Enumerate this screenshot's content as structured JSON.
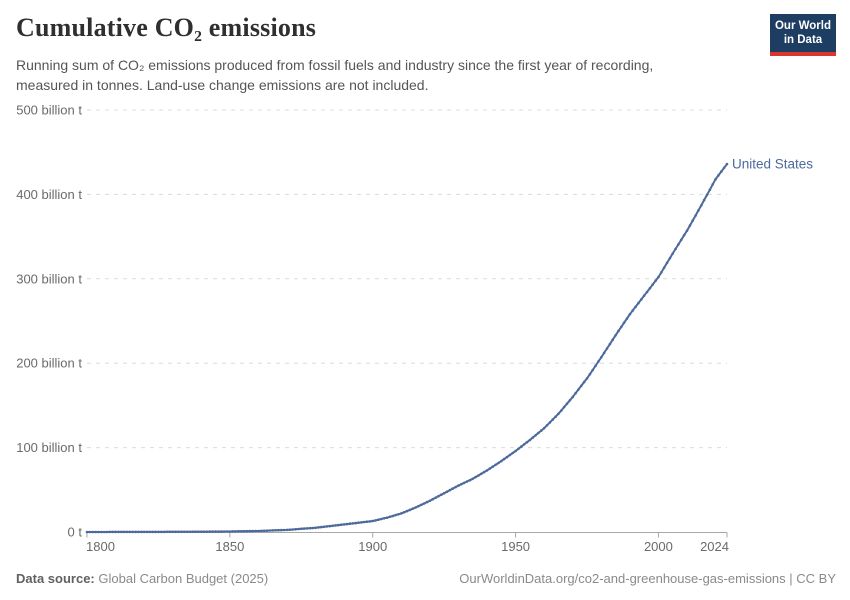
{
  "header": {
    "title": "Cumulative CO₂ emissions",
    "subtitle_line1": "Running sum of CO₂ emissions produced from fossil fuels and industry since the first year of recording,",
    "subtitle_line2": "measured in tonnes. Land-use change emissions are not included."
  },
  "logo": {
    "line1": "Our World",
    "line2": "in Data",
    "bg_color": "#1d3d63",
    "accent_color": "#d9372e"
  },
  "chart_data": {
    "type": "line",
    "title": "Cumulative CO₂ emissions",
    "value_unit": "billion tonnes CO₂",
    "x_unit": "year",
    "xlim": [
      1800,
      2024
    ],
    "ylim": [
      0,
      500
    ],
    "grid": "horizontal dashed",
    "legend_position": "end-of-line label",
    "series": [
      {
        "name": "United States",
        "color": "#4c6a9c",
        "x": [
          1800,
          1810,
          1820,
          1830,
          1840,
          1850,
          1860,
          1870,
          1880,
          1890,
          1900,
          1905,
          1910,
          1915,
          1920,
          1925,
          1930,
          1935,
          1940,
          1945,
          1950,
          1955,
          1960,
          1965,
          1970,
          1975,
          1980,
          1985,
          1990,
          1995,
          2000,
          2005,
          2010,
          2015,
          2020,
          2024
        ],
        "values": [
          0.03,
          0.07,
          0.12,
          0.2,
          0.35,
          0.6,
          1.2,
          2.5,
          5,
          9,
          13,
          17,
          22,
          29,
          37,
          46,
          55,
          63,
          73,
          84,
          96,
          109,
          123,
          140,
          160,
          182,
          207,
          233,
          258,
          280,
          302,
          330,
          357,
          387,
          418,
          436
        ]
      }
    ],
    "yticks": [
      {
        "value": 0,
        "label": "0 t"
      },
      {
        "value": 100,
        "label": "100 billion t"
      },
      {
        "value": 200,
        "label": "200 billion t"
      },
      {
        "value": 300,
        "label": "300 billion t"
      },
      {
        "value": 400,
        "label": "400 billion t"
      },
      {
        "value": 500,
        "label": "500 billion t"
      }
    ],
    "xticks": [
      {
        "year": 1800,
        "label": "1800"
      },
      {
        "year": 1850,
        "label": "1850"
      },
      {
        "year": 1900,
        "label": "1900"
      },
      {
        "year": 1950,
        "label": "1950"
      },
      {
        "year": 2000,
        "label": "2000"
      },
      {
        "year": 2024,
        "label": "2024"
      }
    ],
    "colors": {
      "gridline": "#dcdcdc",
      "axis": "#a8a8a8",
      "tick_label": "#6a6a6a"
    }
  },
  "footer": {
    "source_label": "Data source:",
    "source_value": "Global Carbon Budget (2025)",
    "credit": "OurWorldinData.org/co2-and-greenhouse-gas-emissions | CC BY"
  }
}
